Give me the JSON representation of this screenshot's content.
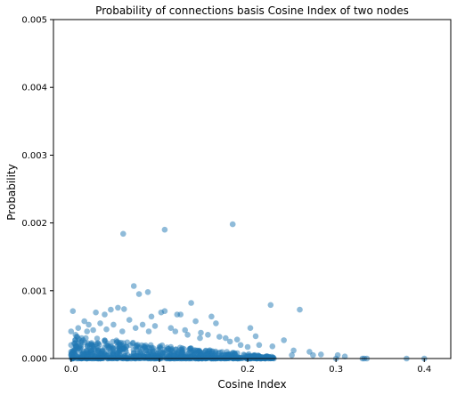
{
  "chart_data": {
    "type": "scatter",
    "title": "Probability of connections basis Cosine Index of two nodes",
    "xlabel": "Cosine Index",
    "ylabel": "Probability",
    "xlim": [
      -0.02,
      0.43
    ],
    "ylim": [
      0,
      0.005
    ],
    "xticks": [
      0.0,
      0.1,
      0.2,
      0.3,
      0.4
    ],
    "xtick_labels": [
      "0.0",
      "0.1",
      "0.2",
      "0.3",
      "0.4"
    ],
    "yticks": [
      0,
      0.001,
      0.002,
      0.003,
      0.004,
      0.005
    ],
    "ytick_labels": [
      "0.000",
      "0.001",
      "0.002",
      "0.003",
      "0.004",
      "0.005"
    ],
    "grid": false,
    "legend": "none",
    "marker_color": "#1f77b4",
    "marker_alpha": 0.5,
    "series": [
      {
        "points": [
          [
            0.059,
            0.00184
          ],
          [
            0.106,
            0.0019
          ],
          [
            0.183,
            0.00198
          ],
          [
            0.002,
            0.0007
          ],
          [
            0.071,
            0.00107
          ],
          [
            0.087,
            0.00098
          ],
          [
            0.077,
            0.00095
          ],
          [
            0.136,
            0.00082
          ],
          [
            0.226,
            0.00079
          ],
          [
            0.259,
            0.00072
          ],
          [
            0.053,
            0.00075
          ],
          [
            0.06,
            0.00073
          ],
          [
            0.045,
            0.00072
          ],
          [
            0.028,
            0.00068
          ],
          [
            0.038,
            0.00065
          ],
          [
            0.102,
            0.00068
          ],
          [
            0.106,
            0.0007
          ],
          [
            0.12,
            0.00065
          ],
          [
            0.124,
            0.00065
          ],
          [
            0.091,
            0.00062
          ],
          [
            0.159,
            0.00062
          ],
          [
            0.164,
            0.00052
          ],
          [
            0.141,
            0.00055
          ],
          [
            0.203,
            0.00045
          ],
          [
            0.209,
            0.00033
          ],
          [
            0.241,
            0.00027
          ],
          [
            0.188,
            0.00028
          ],
          [
            0.175,
            0.0003
          ],
          [
            0.213,
            0.0002
          ],
          [
            0.228,
            0.00018
          ],
          [
            0.2,
            0.00017
          ],
          [
            0.252,
            0.00012
          ],
          [
            0.27,
            0.0001
          ],
          [
            0.283,
            6e-05
          ],
          [
            0.302,
            5e-05
          ],
          [
            0.31,
            3e-05
          ],
          [
            0.33,
            0.0
          ],
          [
            0.332,
            0.0
          ],
          [
            0.38,
            0.0
          ],
          [
            0.4,
            0.0
          ],
          [
            0.335,
            0.0
          ],
          [
            0.3,
            0.0
          ],
          [
            0.274,
            5e-05
          ],
          [
            0.25,
            5e-05
          ],
          [
            0.015,
            0.00055
          ],
          [
            0.02,
            0.0005
          ],
          [
            0.008,
            0.00045
          ],
          [
            0.033,
            0.00052
          ],
          [
            0.048,
            0.0005
          ],
          [
            0.066,
            0.00057
          ],
          [
            0.081,
            0.0005
          ],
          [
            0.095,
            0.00048
          ],
          [
            0.113,
            0.00045
          ],
          [
            0.129,
            0.00042
          ],
          [
            0.147,
            0.00038
          ],
          [
            0.155,
            0.00035
          ],
          [
            0.168,
            0.00032
          ],
          [
            0.18,
            0.00025
          ],
          [
            0.192,
            0.0002
          ],
          [
            0.146,
            0.0003
          ],
          [
            0.132,
            0.00035
          ],
          [
            0.118,
            0.0004
          ],
          [
            0.018,
            0.0004
          ],
          [
            0.025,
            0.00042
          ],
          [
            0.073,
            0.00045
          ],
          [
            0.088,
            0.0004
          ],
          [
            0.058,
            0.0004
          ],
          [
            0.04,
            0.00043
          ],
          [
            0.0,
            0.0004
          ],
          [
            0.005,
            0.00035
          ],
          [
            0.012,
            0.0003
          ],
          [
            0.0,
            0.0002
          ],
          [
            0.0,
            0.0001
          ],
          [
            0.0,
            5e-05
          ]
        ]
      }
    ]
  }
}
